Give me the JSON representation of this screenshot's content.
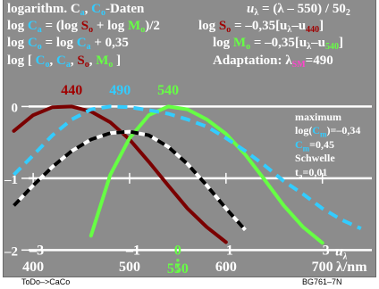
{
  "header": {
    "line1_left": "logarithm. C",
    "line1_a": "a",
    "line1_sep": ", ",
    "line1_c": "C",
    "line1_o": "o",
    "line1_tail": "-Daten",
    "line1_right": "u",
    "line1_right_sub": "λ",
    "line1_right_tail": " = (λ – 550) / 50",
    "line1_right_sub2": "2",
    "line2_left": "log C",
    "line2_left_sub": "a",
    "line2_mid": " = (log S",
    "line2_mid_sub": "o",
    "line2_plus": " + log M",
    "line2_plus_sub": "o",
    "line2_tail": ")/2",
    "line2_right": "log S",
    "line2_right_sub": "o",
    "line2_right_tail": " = –0,35[u",
    "line2_right_sub2": "λ",
    "line2_right_tail2": "–u",
    "line2_right_sub3": "440",
    "line2_right_end": "]",
    "line3_left": "log C",
    "line3_left_sub": "o",
    "line3_mid": " = log C",
    "line3_mid_sub": "a",
    "line3_tail": " + 0,35",
    "line3_right": "log M",
    "line3_right_sub": "o",
    "line3_right_tail": " = –0,35[u",
    "line3_right_sub2": "λ",
    "line3_right_tail2": "–u",
    "line3_right_sub3": "540",
    "line3_right_end": "]",
    "line4_left": "log [ C",
    "line4_sub1": "o",
    "line4_sep1": ", C",
    "line4_sub2": "a",
    "line4_sep2": ", S",
    "line4_sub3": "o",
    "line4_sep3": ", M",
    "line4_sub4": "o",
    "line4_end": " ]",
    "line4_right": "Adaptation: λ",
    "line4_right_sub": "SM",
    "line4_right_tail": "=490"
  },
  "side_panel": {
    "maximum": "maximum",
    "log_cm_prefix": "log(",
    "log_cm_c": "C",
    "log_cm_sub": "m",
    "log_cm_value": ")=–0,34",
    "cm_c": "C",
    "cm_sub": "m",
    "cm_value": "=0,45",
    "schwelle": "Schwelle",
    "ta_t": "t",
    "ta_sub": "a",
    "ta_value": "=0,01"
  },
  "footer": {
    "left": "ToDo–>CaCo",
    "right": "BG761–7N"
  },
  "colors": {
    "background": "#8c8c8c",
    "white": "#ffffff",
    "cyan": "#33ccff",
    "dark_red": "#7a0000",
    "red_label": "#a00000",
    "green": "#66ff44",
    "magenta": "#ff44cc",
    "black": "#000000"
  },
  "chart_data": {
    "type": "line",
    "xlabel": "λ/nm",
    "x_tick_labels": [
      "400",
      "500",
      "600",
      "700"
    ],
    "x_ticks_nm": [
      400,
      500,
      600,
      700
    ],
    "highlight_x_tick": "550",
    "u_label": "u",
    "u_label_sub": "λ",
    "u_ticks": [
      {
        "label": "–3",
        "nm": 400
      },
      {
        "label": "–1",
        "nm": 500
      },
      {
        "label": "0",
        "nm": 550
      },
      {
        "label": "1",
        "nm": 600
      },
      {
        "label": "3",
        "nm": 700
      }
    ],
    "y_tick_labels": [
      "0",
      "–1",
      "–2"
    ],
    "y_ticks": [
      0,
      -1,
      -2
    ],
    "ylim": [
      -2.12,
      0.44
    ],
    "xlim": [
      373,
      755
    ],
    "peak_labels": [
      {
        "label": "440",
        "nm": 440,
        "color": "#a00000"
      },
      {
        "label": "490",
        "nm": 490,
        "color": "#33ccff"
      },
      {
        "label": "540",
        "nm": 540,
        "color": "#66ff44"
      }
    ],
    "series": [
      {
        "style": "solid",
        "color": "#7a0000",
        "x": [
          380,
          400,
          420,
          440,
          460,
          480,
          500,
          520,
          540,
          560,
          580,
          600
        ],
        "y": [
          -0.34,
          -0.12,
          -0.01,
          0.0,
          -0.07,
          -0.22,
          -0.46,
          -0.77,
          -1.1,
          -1.42,
          -1.68,
          -1.89
        ]
      },
      {
        "style": "solid",
        "color": "#66ff44",
        "x": [
          460,
          480,
          500,
          520,
          540,
          560,
          580,
          600,
          620,
          640,
          660,
          680,
          700
        ],
        "y": [
          -1.8,
          -0.95,
          -0.44,
          -0.12,
          0.0,
          -0.04,
          -0.18,
          -0.38,
          -0.67,
          -1.02,
          -1.38,
          -1.68,
          -1.9
        ]
      },
      {
        "style": "dashed",
        "color": "#33ccff",
        "x": [
          380,
          400,
          420,
          440,
          460,
          480,
          500,
          520,
          540,
          560,
          580,
          600,
          620,
          640,
          660,
          680,
          700,
          720,
          740
        ],
        "y": [
          -0.95,
          -0.68,
          -0.4,
          -0.18,
          -0.04,
          0.0,
          -0.01,
          -0.05,
          -0.1,
          -0.18,
          -0.28,
          -0.44,
          -0.62,
          -0.82,
          -1.04,
          -1.22,
          -1.42,
          -1.58,
          -1.7
        ]
      },
      {
        "style": "dashed-bicolor",
        "color": "#000000",
        "color2": "#ffffff",
        "x": [
          380,
          400,
          420,
          440,
          460,
          480,
          500,
          520,
          540,
          560,
          580,
          600,
          620
        ],
        "y": [
          -1.38,
          -1.1,
          -0.84,
          -0.62,
          -0.46,
          -0.37,
          -0.35,
          -0.4,
          -0.56,
          -0.8,
          -1.1,
          -1.42,
          -1.72
        ]
      }
    ]
  }
}
